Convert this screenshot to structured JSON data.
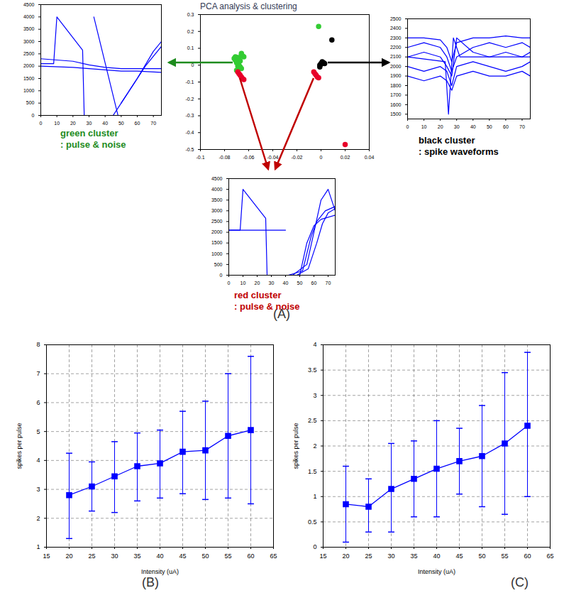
{
  "chart_data": [
    {
      "type": "scatter",
      "title": "PCA analysis & clustering",
      "panel": "(A)",
      "xlim": [
        -0.1,
        0.04
      ],
      "xticks": [
        -0.1,
        -0.08,
        -0.06,
        -0.04,
        -0.02,
        0,
        0.02,
        0.04
      ],
      "ylim": [
        -0.5,
        0.3
      ],
      "yticks": [
        -0.5,
        -0.4,
        -0.3,
        -0.2,
        -0.1,
        0,
        0.1,
        0.2,
        0.3
      ],
      "grid": false,
      "marker": "circle",
      "series": [
        {
          "color": "#33cc33",
          "x": [
            -0.072,
            -0.071,
            -0.07,
            -0.069,
            -0.068,
            -0.067,
            -0.066,
            -0.07,
            -0.071,
            -0.069,
            -0.068,
            -0.067,
            -0.066,
            -0.065,
            -0.07,
            -0.069,
            -0.068,
            -0.066,
            -0.064,
            -0.002
          ],
          "y": [
            0.04,
            0.03,
            0.02,
            0.01,
            0.0,
            -0.01,
            -0.02,
            -0.03,
            0.05,
            0.045,
            0.035,
            0.025,
            0.06,
            0.055,
            0.015,
            -0.005,
            -0.015,
            0.07,
            0.05,
            0.23
          ]
        },
        {
          "color": "#e8002a",
          "x": [
            -0.069,
            -0.068,
            -0.067,
            -0.066,
            -0.065,
            -0.064,
            -0.006,
            -0.005,
            -0.004,
            -0.003,
            -0.002,
            0.02
          ],
          "y": [
            -0.04,
            -0.05,
            -0.06,
            -0.07,
            -0.08,
            -0.085,
            -0.04,
            -0.05,
            -0.06,
            -0.07,
            -0.075,
            -0.47
          ]
        },
        {
          "color": "#000000",
          "x": [
            -0.001,
            0,
            0.001,
            0.002,
            0,
            -0.001,
            0.003,
            0.009
          ],
          "y": [
            0,
            0.01,
            0.02,
            0.015,
            0.005,
            -0.01,
            0.01,
            0.15
          ]
        }
      ]
    },
    {
      "type": "line",
      "annotations": [
        "green cluster",
        ": pulse & noise"
      ],
      "color": "#1e8c1e",
      "xlim": [
        0,
        75
      ],
      "xticks": [
        0,
        10,
        20,
        30,
        40,
        50,
        60,
        70
      ],
      "ylim": [
        0,
        4500
      ],
      "yticks": [
        0,
        500,
        1000,
        1500,
        2000,
        2500,
        3000,
        3500,
        4000,
        4500
      ],
      "series": [
        {
          "color": "#0000ff",
          "x": [
            0,
            8,
            10,
            26,
            27,
            30
          ],
          "values": [
            2100,
            2100,
            4000,
            2650,
            0,
            0
          ]
        },
        {
          "color": "#0000ff",
          "x": [
            0,
            20,
            30,
            40,
            50,
            60,
            75
          ],
          "values": [
            2300,
            2200,
            2050,
            1950,
            1900,
            1900,
            1900
          ]
        },
        {
          "color": "#0000ff",
          "x": [
            0,
            20,
            30,
            40,
            50,
            60,
            75
          ],
          "values": [
            2000,
            1950,
            1900,
            1850,
            1800,
            1800,
            1750
          ]
        },
        {
          "color": "#0000ff",
          "x": [
            33,
            48
          ],
          "values": [
            4000,
            0
          ]
        },
        {
          "color": "#0000ff",
          "x": [
            45,
            55,
            65,
            75
          ],
          "values": [
            0,
            1000,
            2000,
            2800
          ]
        },
        {
          "color": "#0000ff",
          "x": [
            50,
            60,
            70,
            75
          ],
          "values": [
            500,
            1500,
            2600,
            3000
          ]
        }
      ]
    },
    {
      "type": "line",
      "annotations": [
        "black cluster",
        ": spike waveforms"
      ],
      "color": "#000000",
      "xlim": [
        0,
        75
      ],
      "xticks": [
        0,
        10,
        20,
        30,
        40,
        50,
        60,
        70
      ],
      "ylim": [
        1450,
        2500
      ],
      "yticks": [
        1500,
        1600,
        1700,
        1800,
        1900,
        2000,
        2100,
        2200,
        2300,
        2400,
        2500
      ],
      "series": [
        {
          "color": "#0000ff",
          "x": [
            0,
            10,
            20,
            24,
            27,
            30,
            40,
            50,
            60,
            70,
            75
          ],
          "values": [
            2200,
            2250,
            2200,
            2100,
            1950,
            2100,
            2200,
            2250,
            2200,
            2250,
            2200
          ]
        },
        {
          "color": "#0000ff",
          "x": [
            0,
            10,
            20,
            24,
            27,
            30,
            40,
            50,
            60,
            70,
            75
          ],
          "values": [
            2000,
            1950,
            2000,
            1950,
            1800,
            2000,
            2050,
            2000,
            1950,
            2000,
            2050
          ]
        },
        {
          "color": "#0000ff",
          "x": [
            0,
            10,
            20,
            24,
            27,
            30,
            40,
            50,
            60,
            70,
            75
          ],
          "values": [
            2300,
            2300,
            2280,
            2200,
            2050,
            2250,
            2300,
            2300,
            2320,
            2300,
            2300
          ]
        },
        {
          "color": "#0000ff",
          "x": [
            0,
            10,
            20,
            24,
            27,
            30,
            40,
            50,
            60,
            70,
            75
          ],
          "values": [
            1900,
            1850,
            1900,
            1850,
            1750,
            1900,
            1950,
            1900,
            1900,
            1950,
            1900
          ]
        },
        {
          "color": "#0000ff",
          "x": [
            0,
            10,
            20,
            24,
            27,
            30,
            40,
            50,
            60,
            70,
            75
          ],
          "values": [
            2100,
            2150,
            2100,
            2000,
            1900,
            2300,
            2150,
            2100,
            2150,
            2100,
            2150
          ]
        },
        {
          "color": "#0000ff",
          "x": [
            0,
            23,
            25,
            28,
            32,
            75
          ],
          "values": [
            2100,
            2050,
            1500,
            2300,
            2100,
            2100
          ]
        }
      ]
    },
    {
      "type": "line",
      "annotations": [
        "red cluster",
        ": pulse & noise"
      ],
      "color": "#c00000",
      "xlim": [
        0,
        75
      ],
      "xticks": [
        0,
        10,
        20,
        30,
        40,
        50,
        60,
        70
      ],
      "ylim": [
        0,
        4500
      ],
      "yticks": [
        0,
        500,
        1000,
        1500,
        2000,
        2500,
        3000,
        3500,
        4000,
        4500
      ],
      "series": [
        {
          "color": "#0000ff",
          "x": [
            0,
            8,
            10,
            26,
            27,
            30
          ],
          "values": [
            2100,
            2100,
            4000,
            2650,
            0,
            0
          ]
        },
        {
          "color": "#0000ff",
          "x": [
            0,
            30,
            40
          ],
          "values": [
            2100,
            2100,
            2100
          ]
        },
        {
          "color": "#0000ff",
          "x": [
            40,
            50,
            55,
            60,
            65,
            75
          ],
          "values": [
            0,
            0,
            1500,
            2300,
            2600,
            2800
          ]
        },
        {
          "color": "#0000ff",
          "x": [
            42,
            52,
            58,
            62,
            68,
            75
          ],
          "values": [
            0,
            200,
            1800,
            2500,
            3000,
            3200
          ]
        },
        {
          "color": "#0000ff",
          "x": [
            45,
            55,
            60,
            65,
            70,
            75
          ],
          "values": [
            0,
            500,
            2000,
            3500,
            4000,
            3000
          ]
        },
        {
          "color": "#0000ff",
          "x": [
            48,
            56,
            62,
            66,
            70,
            75
          ],
          "values": [
            0,
            300,
            1500,
            2400,
            2900,
            3100
          ]
        }
      ]
    },
    {
      "type": "line",
      "panel": "(B)",
      "xlabel": "Intensity (uA)",
      "ylabel": "spikes per pulse",
      "xlim": [
        15,
        65
      ],
      "xticks": [
        15,
        20,
        25,
        30,
        35,
        40,
        45,
        50,
        55,
        60,
        65
      ],
      "ylim": [
        1,
        8
      ],
      "yticks": [
        1,
        2,
        3,
        4,
        5,
        6,
        7,
        8
      ],
      "grid": true,
      "series": [
        {
          "color": "#0000ff",
          "marker": "square",
          "x": [
            20,
            25,
            30,
            35,
            40,
            45,
            50,
            55,
            60
          ],
          "values": [
            2.8,
            3.1,
            3.45,
            3.8,
            3.9,
            4.3,
            4.35,
            4.85,
            5.05
          ],
          "lower": [
            1.3,
            2.25,
            2.2,
            2.6,
            2.7,
            2.85,
            2.65,
            2.7,
            2.5
          ],
          "upper": [
            4.25,
            3.95,
            4.65,
            4.95,
            5.05,
            5.7,
            6.05,
            7.0,
            7.6
          ]
        }
      ]
    },
    {
      "type": "line",
      "panel": "(C)",
      "xlabel": "Intensity (uA)",
      "ylabel": "spikes per pulse",
      "xlim": [
        15,
        65
      ],
      "xticks": [
        15,
        20,
        25,
        30,
        35,
        40,
        45,
        50,
        55,
        60,
        65
      ],
      "ylim": [
        0,
        4
      ],
      "yticks": [
        0,
        0.5,
        1,
        1.5,
        2,
        2.5,
        3,
        3.5,
        4
      ],
      "grid": true,
      "series": [
        {
          "color": "#0000ff",
          "marker": "square",
          "x": [
            20,
            25,
            30,
            35,
            40,
            45,
            50,
            55,
            60
          ],
          "values": [
            0.85,
            0.8,
            1.15,
            1.35,
            1.55,
            1.7,
            1.8,
            2.05,
            2.4
          ],
          "lower": [
            0.1,
            0.3,
            0.3,
            0.6,
            0.6,
            1.05,
            0.8,
            0.65,
            1.0
          ],
          "upper": [
            1.6,
            1.35,
            2.05,
            2.1,
            2.5,
            2.35,
            2.8,
            3.45,
            3.85
          ]
        }
      ]
    }
  ]
}
